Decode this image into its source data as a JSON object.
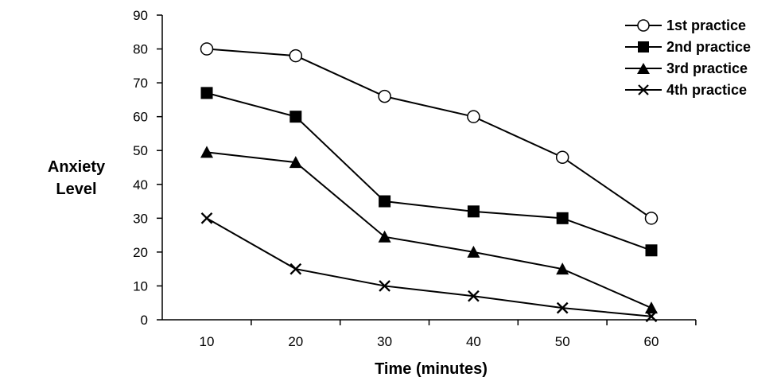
{
  "chart_data": {
    "type": "line",
    "xlabel": "Time (minutes)",
    "ylabel_lines": [
      "Anxiety",
      "Level"
    ],
    "x": [
      10,
      20,
      30,
      40,
      50,
      60
    ],
    "x_ticks": [
      "10",
      "20",
      "30",
      "40",
      "50",
      "60"
    ],
    "ylim": [
      0,
      90
    ],
    "y_ticks": [
      "0",
      "10",
      "20",
      "30",
      "40",
      "50",
      "60",
      "70",
      "80",
      "90"
    ],
    "grid": false,
    "legend_position": "top-right",
    "series": [
      {
        "name": "1st practice",
        "marker": "open-circle",
        "values": [
          80,
          78,
          66,
          60,
          48,
          30
        ]
      },
      {
        "name": "2nd practice",
        "marker": "filled-square",
        "values": [
          67,
          60,
          35,
          32,
          30,
          20.5
        ]
      },
      {
        "name": "3rd practice",
        "marker": "filled-triangle",
        "values": [
          49.5,
          46.5,
          24.5,
          20,
          15,
          3.5
        ]
      },
      {
        "name": "4th practice",
        "marker": "x-cross",
        "values": [
          30,
          15,
          10,
          7,
          3.5,
          1
        ]
      }
    ]
  }
}
